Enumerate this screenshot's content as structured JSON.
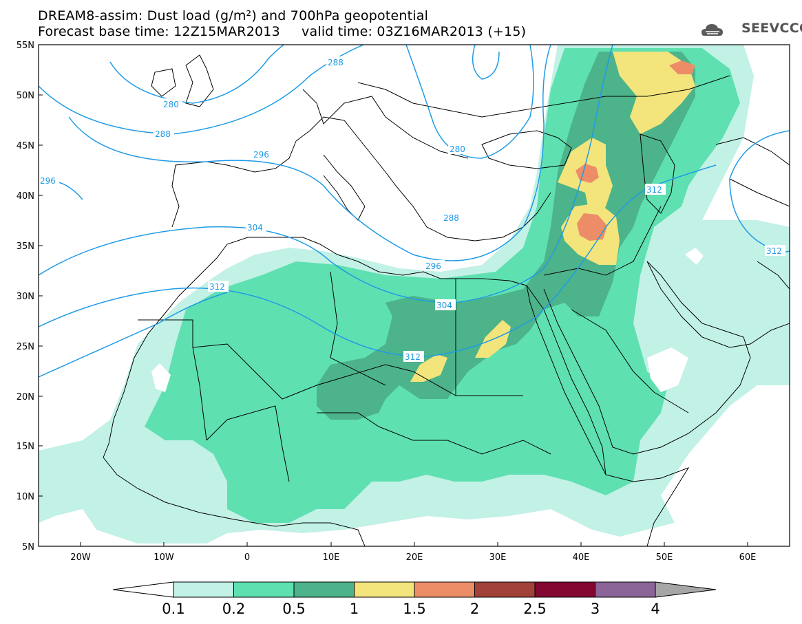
{
  "header": {
    "title_line1": "DREAM8-assim: Dust load (g/m²) and 700hPa geopotential",
    "title_line2": "Forecast base time: 12Z15MAR2013     valid time: 03Z16MAR2013 (+15)",
    "logo_text": "SEEVCCC"
  },
  "map": {
    "lon_range": [
      -25,
      65
    ],
    "lat_range": [
      5,
      55
    ],
    "lat_ticks": [
      "55N",
      "50N",
      "45N",
      "40N",
      "35N",
      "30N",
      "25N",
      "20N",
      "15N",
      "10N",
      "5N"
    ],
    "lon_ticks": [
      "20W",
      "10W",
      "0",
      "10E",
      "20E",
      "30E",
      "40E",
      "50E",
      "60E"
    ],
    "contour_labels": [
      "288",
      "280",
      "288",
      "296",
      "296",
      "280",
      "312",
      "304",
      "288",
      "296",
      "312",
      "304",
      "312",
      "312"
    ],
    "colors": {
      "contour": "#1e9be6",
      "coast": "#000000"
    }
  },
  "colorbar": {
    "levels": [
      "0.1",
      "0.2",
      "0.5",
      "1",
      "1.5",
      "2",
      "2.5",
      "3",
      "4"
    ],
    "colors": [
      "#c2f1e6",
      "#5fe0b1",
      "#4db38a",
      "#f3e47c",
      "#ec8d68",
      "#a2403a",
      "#830730",
      "#8b6597",
      "#a6a6a6"
    ]
  }
}
